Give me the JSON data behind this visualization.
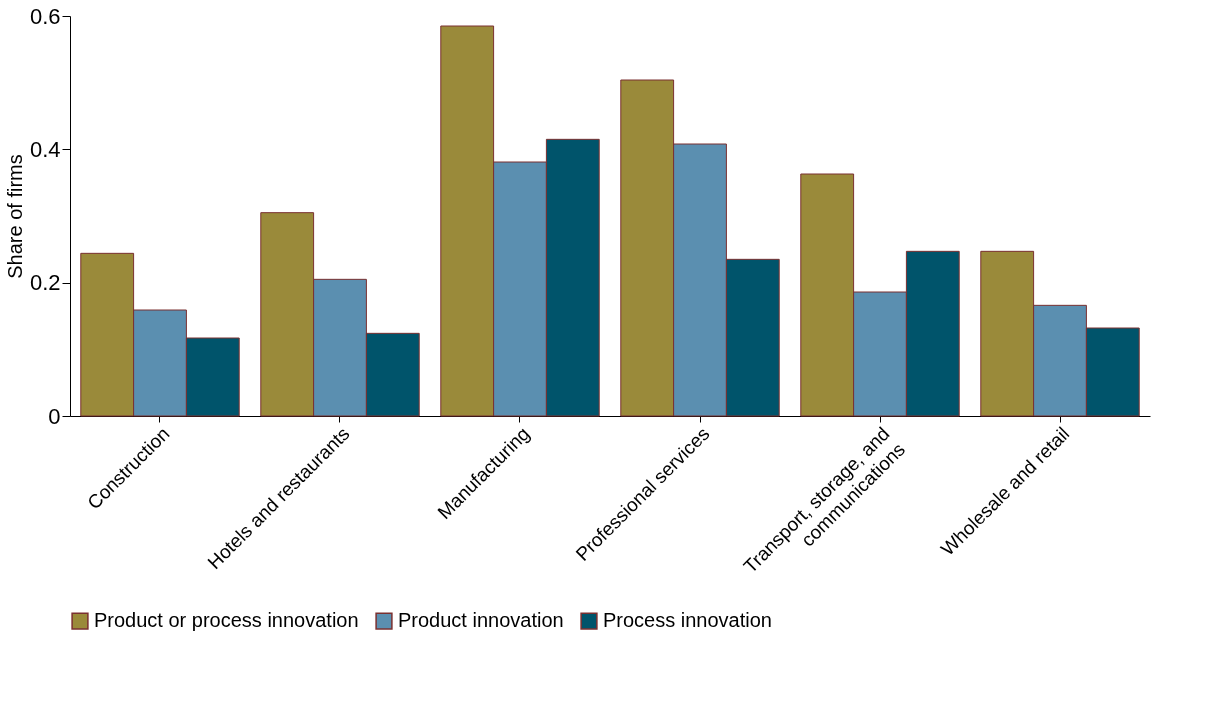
{
  "chart_data": {
    "type": "bar",
    "ylabel": "Share of firms",
    "categories": [
      "Construction",
      "Hotels and restaurants",
      "Manufacturing",
      "Professional services",
      "Transport, storage, and\ncommunications",
      "Wholesale and retail"
    ],
    "series": [
      {
        "name": "Product or process innovation",
        "color": "#9a8a3a",
        "values": [
          0.244,
          0.305,
          0.585,
          0.504,
          0.363,
          0.247
        ]
      },
      {
        "name": "Product innovation",
        "color": "#5b8fb0",
        "values": [
          0.159,
          0.205,
          0.381,
          0.408,
          0.186,
          0.166
        ]
      },
      {
        "name": "Process innovation",
        "color": "#00546b",
        "values": [
          0.117,
          0.124,
          0.415,
          0.235,
          0.247,
          0.132
        ]
      }
    ],
    "ylim": [
      0,
      0.6
    ],
    "yticks": [
      0,
      0.2,
      0.4,
      0.6
    ],
    "grid": false,
    "legend": "bottom"
  }
}
